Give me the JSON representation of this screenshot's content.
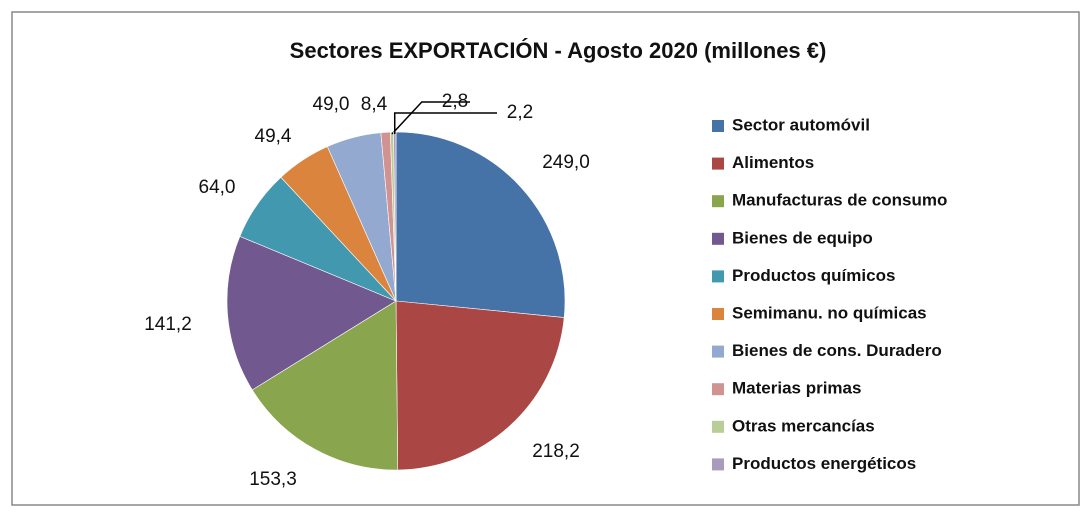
{
  "chart_data": {
    "type": "pie",
    "title": "Sectores EXPORTACIÓN - Agosto 2020 (millones €)",
    "categories": [
      "Sector automóvil",
      "Alimentos",
      "Manufacturas de consumo",
      "Bienes de equipo",
      "Productos químicos",
      "Semimanu. no químicas",
      "Bienes de cons. Duradero",
      "Materias primas",
      "Otras mercancías",
      "Productos energéticos"
    ],
    "values": [
      249.0,
      218.2,
      153.3,
      141.2,
      64.0,
      49.4,
      49.0,
      8.4,
      2.8,
      2.2
    ],
    "value_labels": [
      "249,0",
      "218,2",
      "153,3",
      "141,2",
      "64,0",
      "49,4",
      "49,0",
      "8,4",
      "2,8",
      "2,2"
    ],
    "colors": [
      "#4572a7",
      "#aa4643",
      "#89a54e",
      "#71588f",
      "#4198af",
      "#db843d",
      "#93a9cf",
      "#d19392",
      "#b9cd96",
      "#a99bbd"
    ],
    "legend": "right"
  }
}
